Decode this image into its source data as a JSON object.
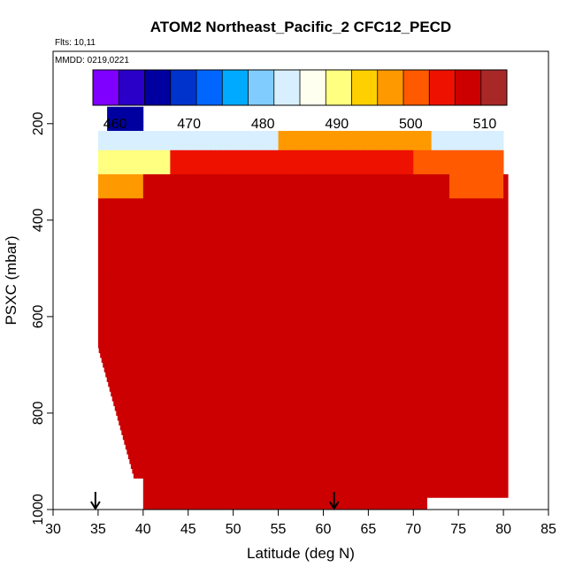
{
  "chart_data": {
    "type": "heatmap",
    "title": "ATOM2 Northeast_Pacific_2 CFC12_PECD",
    "flights_note": "Flts: 10,11",
    "date_note": "MMDD: 0219,0221",
    "xlabel": "Latitude (deg N)",
    "ylabel": "PSXC (mbar)",
    "xlim": [
      30,
      85
    ],
    "ylim": [
      1000,
      50
    ],
    "x_ticks": [
      30,
      35,
      40,
      45,
      50,
      55,
      60,
      65,
      70,
      75,
      80,
      85
    ],
    "y_ticks": [
      200,
      400,
      600,
      800,
      1000
    ],
    "colorbar": {
      "min": 457,
      "max": 513,
      "ticks": [
        460,
        470,
        480,
        490,
        500,
        510
      ],
      "colors": [
        "#7f00ff",
        "#2a00c8",
        "#0000a0",
        "#0033cc",
        "#0066ff",
        "#00aaff",
        "#80ccff",
        "#d8efff",
        "#fffff0",
        "#ffff80",
        "#ffd000",
        "#ff9900",
        "#ff5a00",
        "#ee1100",
        "#cc0000",
        "#a82828"
      ]
    },
    "arrows_latitude": [
      34.7,
      61.2
    ],
    "background_value": 508.5,
    "regions": [
      {
        "lat": [
          36,
          40
        ],
        "p": [
          165,
          210
        ],
        "value": 466
      },
      {
        "lat": [
          35,
          55
        ],
        "p": [
          212,
          250
        ],
        "value": 484
      },
      {
        "lat": [
          55,
          72
        ],
        "p": [
          212,
          250
        ],
        "value": 497
      },
      {
        "lat": [
          72,
          80
        ],
        "p": [
          212,
          250
        ],
        "value": 482
      },
      {
        "lat": [
          35,
          43
        ],
        "p": [
          250,
          300
        ],
        "value": 489
      },
      {
        "lat": [
          43,
          70
        ],
        "p": [
          250,
          300
        ],
        "value": 505
      },
      {
        "lat": [
          70,
          80
        ],
        "p": [
          250,
          300
        ],
        "value": 499
      },
      {
        "lat": [
          35,
          40
        ],
        "p": [
          300,
          350
        ],
        "value": 498
      },
      {
        "lat": [
          74,
          80
        ],
        "p": [
          300,
          350
        ],
        "value": 502
      }
    ]
  }
}
